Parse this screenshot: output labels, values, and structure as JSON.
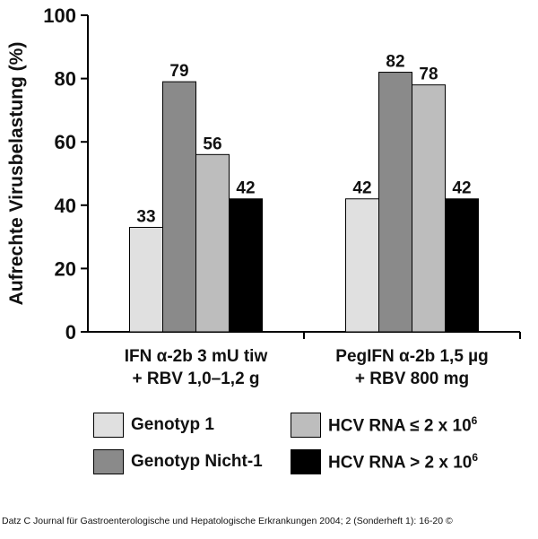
{
  "chart_data": {
    "type": "bar",
    "ylabel": "Aufrechte Virusbelastung (%)",
    "ylim": [
      0,
      100
    ],
    "yticks": [
      0,
      20,
      40,
      60,
      80,
      100
    ],
    "grid": false,
    "legend_position": "bottom",
    "categories": [
      [
        "IFN α-2b 3 mU tiw",
        "+ RBV 1,0–1,2 g"
      ],
      [
        "PegIFN α-2b 1,5 µg",
        "+ RBV 800 mg"
      ]
    ],
    "series": [
      {
        "name": "Genotyp 1",
        "color": "#e0e0e0",
        "values": [
          33,
          42
        ],
        "labels": [
          "33",
          "42"
        ]
      },
      {
        "name": "Genotyp Nicht-1",
        "color": "#8a8a8a",
        "values": [
          79,
          82
        ],
        "labels": [
          "79",
          "82"
        ]
      },
      {
        "name": "HCV RNA ≤ 2 x 10",
        "name_sup": "6",
        "color": "#bdbdbd",
        "values": [
          56,
          78
        ],
        "labels": [
          "56",
          "78"
        ]
      },
      {
        "name": "HCV RNA > 2 x 10",
        "name_sup": "6",
        "color": "#000000",
        "values": [
          42,
          42
        ],
        "labels": [
          "42",
          "42"
        ]
      }
    ]
  },
  "credit": "Datz C Journal für Gastroenterologische und Hepatologische Erkrankungen 2004; 2 (Sonderheft 1): 16-20 ©"
}
